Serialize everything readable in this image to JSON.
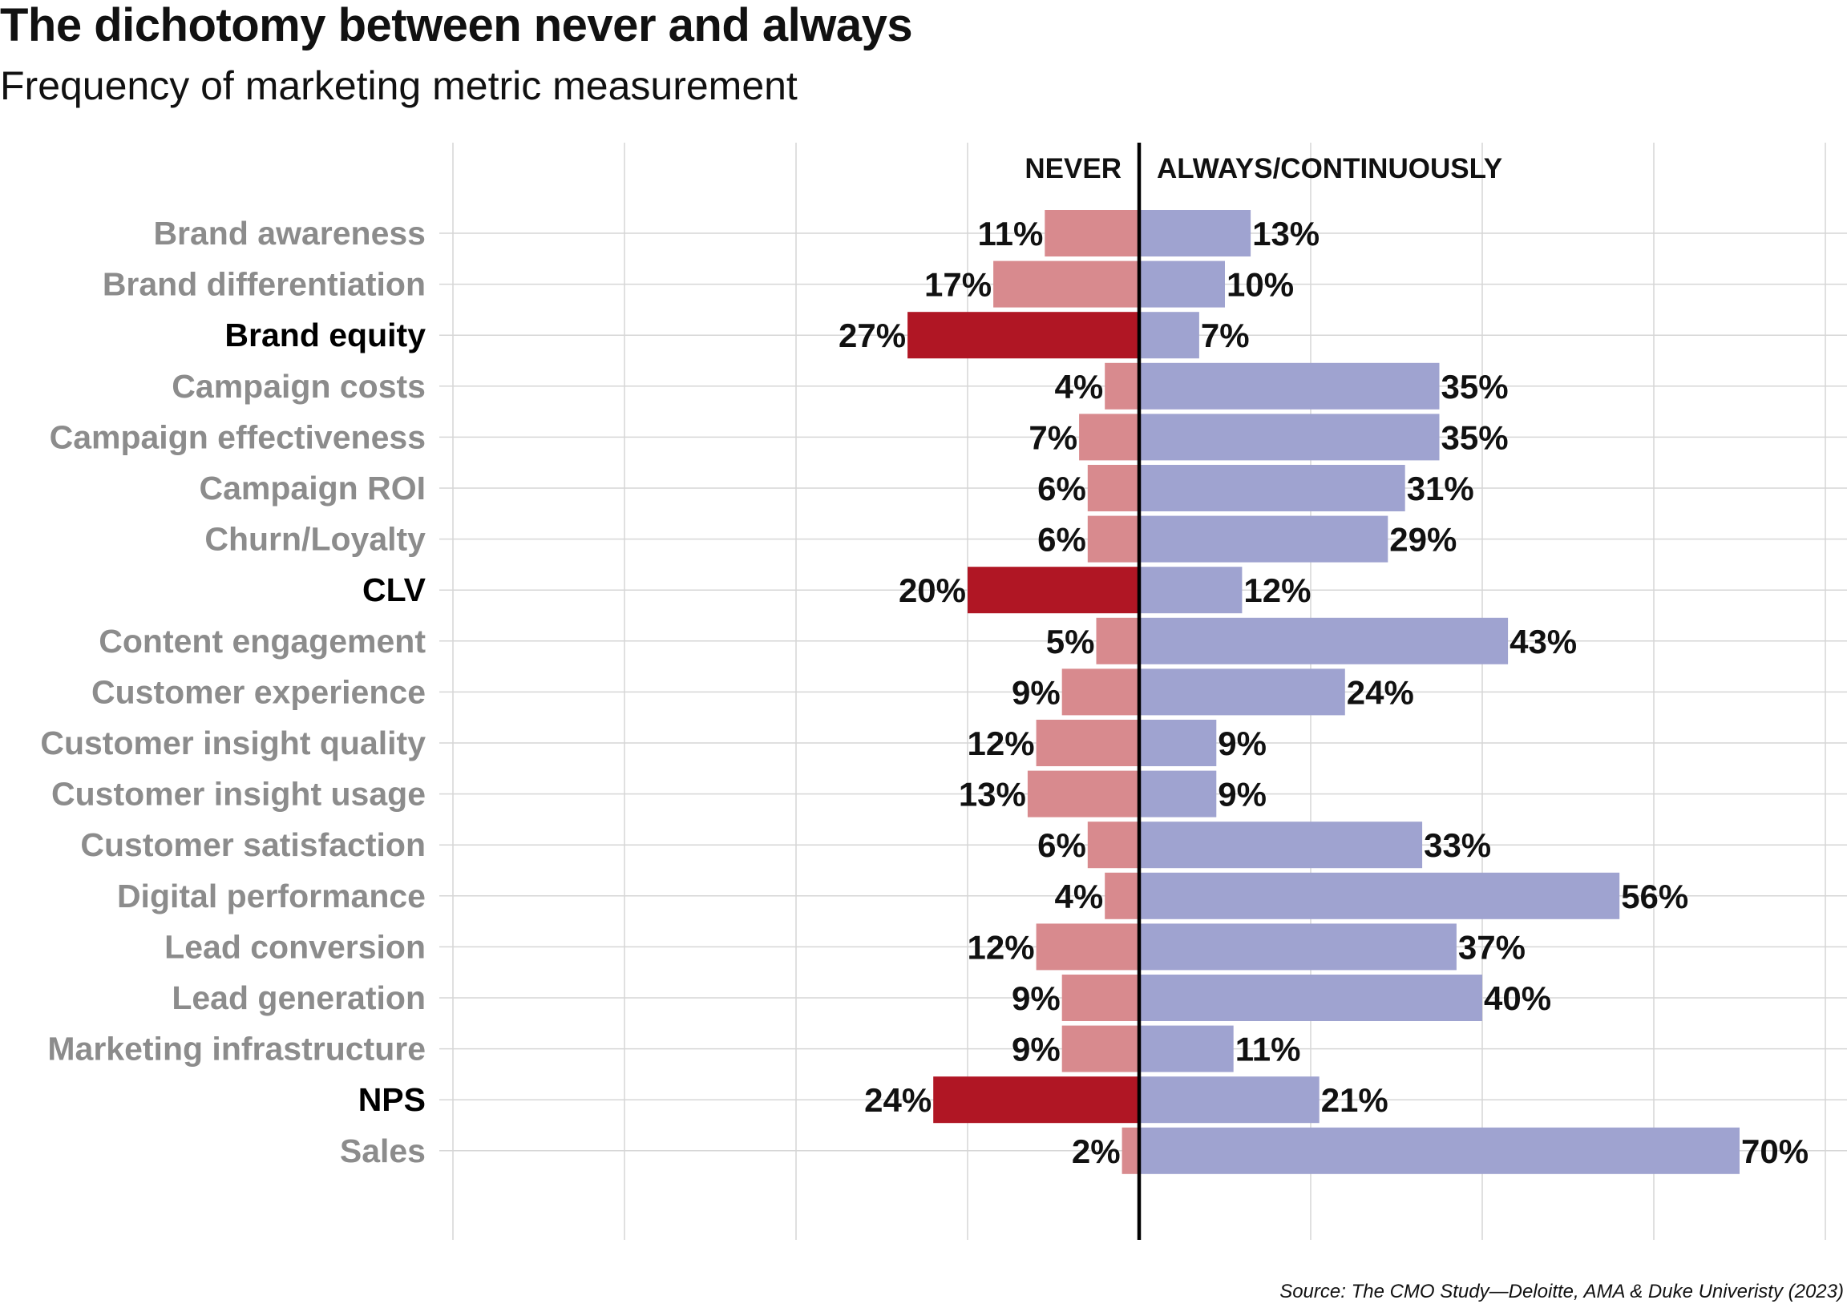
{
  "title": "The dichotomy between never and always",
  "subtitle": "Frequency of marketing metric measurement",
  "source": "Source: The CMO Study—Deloitte, AMA & Duke Univeristy (2023)",
  "colors": {
    "never": "#d88a8e",
    "never_highlight": "#b01624",
    "always": "#9fa3d0",
    "label": "#8c8c8c",
    "label_highlight": "#000000",
    "grid": "#d6d6d6",
    "center_line": "#000000"
  },
  "chart_data": {
    "type": "bar",
    "orientation": "horizontal",
    "diverging": true,
    "headers": {
      "left": "NEVER",
      "right": "ALWAYS/CONTINUOUSLY"
    },
    "categories": [
      "Brand awareness",
      "Brand differentiation",
      "Brand equity",
      "Campaign costs",
      "Campaign effectiveness",
      "Campaign ROI",
      "Churn/Loyalty",
      "CLV",
      "Content engagement",
      "Customer experience",
      "Customer insight quality",
      "Customer insight usage",
      "Customer satisfaction",
      "Digital performance",
      "Lead conversion",
      "Lead generation",
      "Marketing infrastructure",
      "NPS",
      "Sales"
    ],
    "highlighted": [
      "Brand equity",
      "CLV",
      "NPS"
    ],
    "series": [
      {
        "name": "NEVER",
        "values": [
          11,
          17,
          27,
          4,
          7,
          6,
          6,
          20,
          5,
          9,
          12,
          13,
          6,
          4,
          12,
          9,
          9,
          24,
          2
        ]
      },
      {
        "name": "ALWAYS/CONTINUOUSLY",
        "values": [
          13,
          10,
          7,
          35,
          35,
          31,
          29,
          12,
          43,
          24,
          9,
          9,
          33,
          56,
          37,
          40,
          11,
          21,
          70
        ]
      }
    ],
    "xlim": [
      -80,
      80
    ],
    "grid_step": 20,
    "grid": true,
    "value_suffix": "%"
  }
}
